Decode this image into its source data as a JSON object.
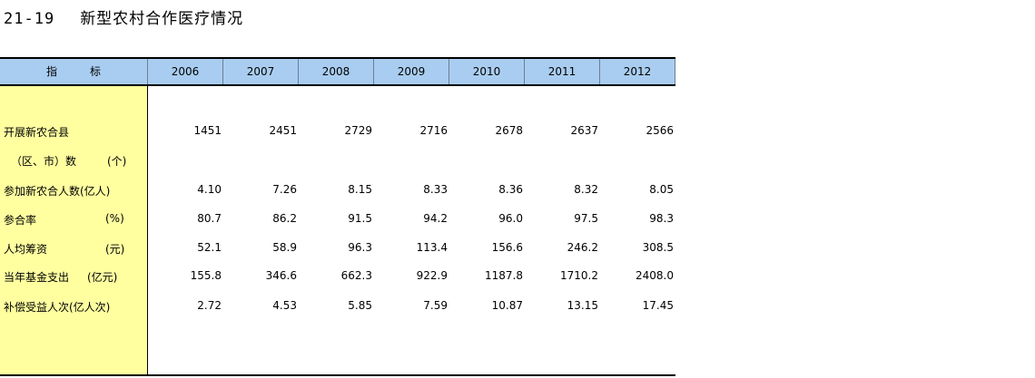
{
  "title": {
    "number": "21-19",
    "text": "新型农村合作医疗情况"
  },
  "table": {
    "stub_header": "指        标",
    "stub_header_parts": [
      "指",
      "标"
    ],
    "years": [
      "2006",
      "2007",
      "2008",
      "2009",
      "2010",
      "2011",
      "2012"
    ],
    "rows": [
      {
        "label": "开展新农合县",
        "unit": "",
        "values": [
          "1451",
          "2451",
          "2729",
          "2716",
          "2678",
          "2637",
          "2566"
        ]
      },
      {
        "label": "（区、市）数",
        "unit": "(个)",
        "values": []
      },
      {
        "label": "参加新农合人数(亿人)",
        "unit": "",
        "values": [
          "4.10",
          "7.26",
          "8.15",
          "8.33",
          "8.36",
          "8.32",
          "8.05"
        ]
      },
      {
        "label": "参合率",
        "unit": "(%)",
        "values": [
          "80.7",
          "86.2",
          "91.5",
          "94.2",
          "96.0",
          "97.5",
          "98.3"
        ]
      },
      {
        "label": "人均筹资",
        "unit": "(元)",
        "values": [
          "52.1",
          "58.9",
          "96.3",
          "113.4",
          "156.6",
          "246.2",
          "308.5"
        ]
      },
      {
        "label": "当年基金支出",
        "unit": "(亿元)",
        "values": [
          "155.8",
          "346.6",
          "662.3",
          "922.9",
          "1187.8",
          "1710.2",
          "2408.0"
        ]
      },
      {
        "label": "补偿受益人次(亿人次)",
        "unit": "",
        "values": [
          "2.72",
          "4.53",
          "5.85",
          "7.59",
          "10.87",
          "13.15",
          "17.45"
        ]
      }
    ]
  }
}
